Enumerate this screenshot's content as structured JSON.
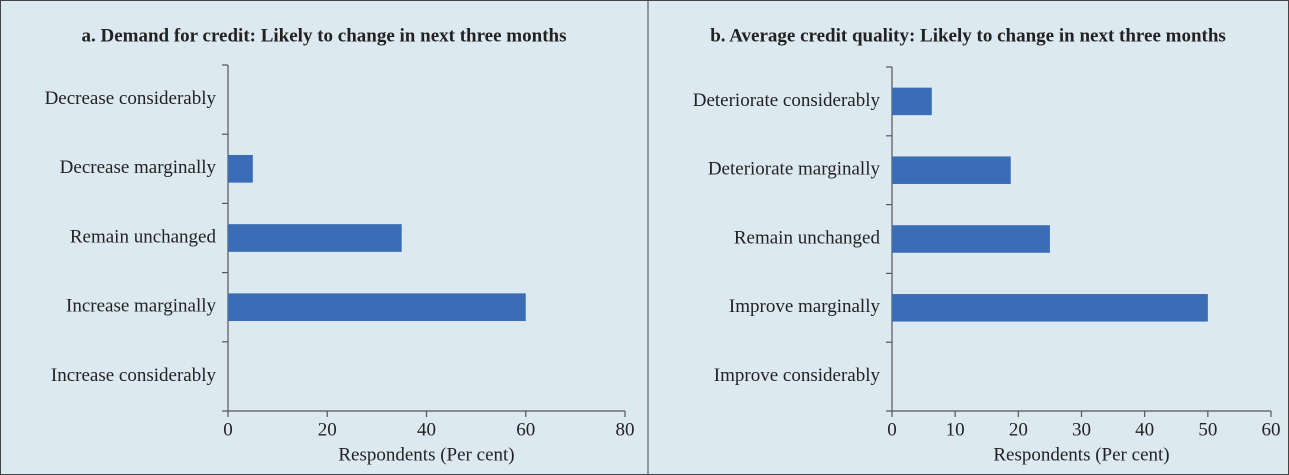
{
  "chart_data": [
    {
      "type": "bar",
      "title": "a. Demand for credit: Likely to change in next three months",
      "categories": [
        "Decrease considerably",
        "Decrease marginally",
        "Remain unchanged",
        "Increase marginally",
        "Increase considerably"
      ],
      "values": [
        0,
        5,
        35,
        60,
        0
      ],
      "color": "#3a6db5",
      "xlabel": "Respondents (Per cent)",
      "xlim": [
        0,
        80
      ],
      "xticks": [
        0,
        20,
        40,
        60,
        80
      ]
    },
    {
      "type": "bar",
      "title": "b. Average credit quality: Likely to change in next three months",
      "categories": [
        "Deteriorate considerably",
        "Deteriorate marginally",
        "Remain unchanged",
        "Improve marginally",
        "Improve considerably"
      ],
      "values": [
        6.3,
        18.8,
        25,
        50,
        0
      ],
      "color": "#3a6db5",
      "xlabel": "Respondents (Per cent)",
      "xlim": [
        0,
        60
      ],
      "xticks": [
        0,
        10,
        20,
        30,
        40,
        50,
        60
      ]
    }
  ]
}
